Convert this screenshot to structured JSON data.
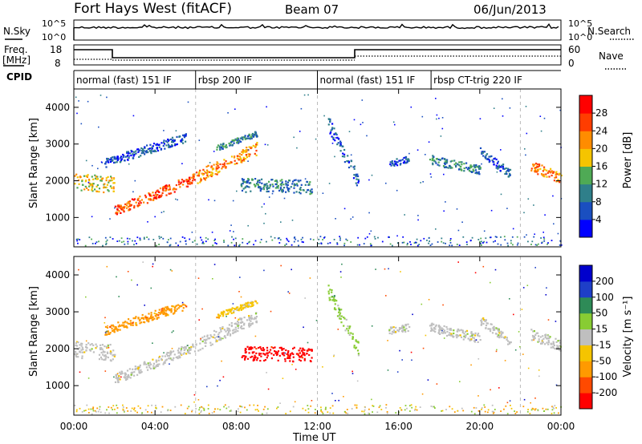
{
  "header": {
    "radar": "Fort Hays West (fitACF)",
    "beam": "Beam 07",
    "date": "06/Jun/2013"
  },
  "noise_panel": {
    "left_label": "N.Sky",
    "right_label": "N.Search",
    "left_ticks": [
      "10^5",
      "10^0"
    ],
    "right_ticks": [
      "10^5",
      "10^0"
    ]
  },
  "freq_panel": {
    "left_label_1": "Freq.",
    "left_label_2": "[MHz]",
    "right_label": "Nave",
    "left_ticks": [
      "18",
      "8"
    ],
    "right_ticks": [
      "60",
      "0"
    ]
  },
  "cpid": {
    "label": "CPID",
    "segments": [
      {
        "start": 0,
        "end": 6,
        "label": "normal (fast) 151 IF"
      },
      {
        "start": 6,
        "end": 12,
        "label": "rbsp 200 IF"
      },
      {
        "start": 12,
        "end": 17.6,
        "label": "normal (fast) 151 IF"
      },
      {
        "start": 17.6,
        "end": 24,
        "label": "rbsp CT-trig 220 IF"
      }
    ]
  },
  "x_axis": {
    "label": "Time UT",
    "ticks": [
      "00:00",
      "04:00",
      "08:00",
      "12:00",
      "16:00",
      "20:00",
      "00:00"
    ]
  },
  "chart_data": [
    {
      "type": "heatmap",
      "title": "",
      "xlabel": "Time UT",
      "ylabel": "Slant Range [km]",
      "xlim": [
        0,
        24
      ],
      "ylim": [
        200,
        4500
      ],
      "yticks": [
        "1000",
        "2000",
        "3000",
        "4000"
      ],
      "colorbar": {
        "label": "Power [dB]",
        "ticks": [
          "4",
          "8",
          "12",
          "16",
          "20",
          "24",
          "28"
        ],
        "range": [
          0,
          30
        ],
        "colors": [
          "#0000ff",
          "#1a4fc0",
          "#2f7f8a",
          "#4faa55",
          "#f5c400",
          "#ff8c00",
          "#ff3d00",
          "#ff0000"
        ]
      }
    },
    {
      "type": "heatmap",
      "title": "",
      "xlabel": "Time UT",
      "ylabel": "Slant Range [km]",
      "xlim": [
        0,
        24
      ],
      "ylim": [
        200,
        4500
      ],
      "yticks": [
        "1000",
        "2000",
        "3000",
        "4000"
      ],
      "colorbar": {
        "label": "Velocity [m s⁻¹]",
        "ticks": [
          "200",
          "100",
          "50",
          "15",
          "-15",
          "-50",
          "-100",
          "-200"
        ],
        "range": [
          -250,
          250
        ],
        "colors": [
          "#ff0000",
          "#ff4a00",
          "#ff9a00",
          "#f5c400",
          "#bfbfbf",
          "#88cc33",
          "#2e8b57",
          "#1e3fc8",
          "#0000cc"
        ]
      }
    }
  ]
}
